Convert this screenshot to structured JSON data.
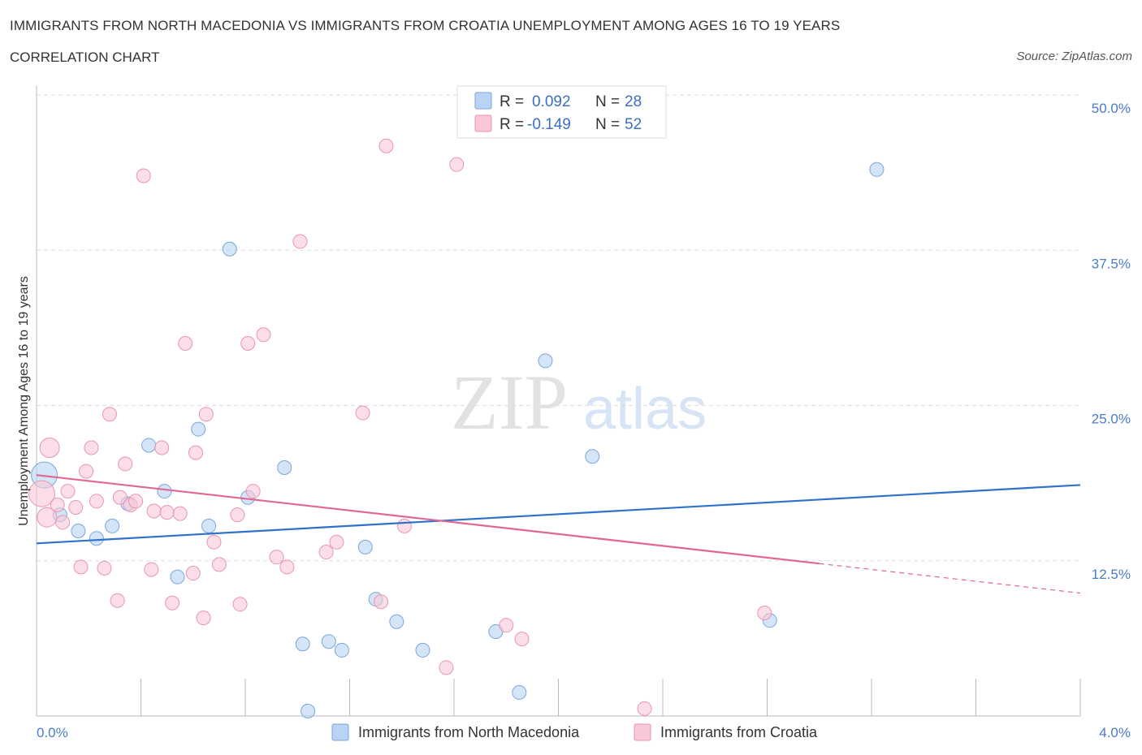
{
  "title": "IMMIGRANTS FROM NORTH MACEDONIA VS IMMIGRANTS FROM CROATIA UNEMPLOYMENT AMONG AGES 16 TO 19 YEARS",
  "subtitle": "CORRELATION CHART",
  "source": "Source: ZipAtlas.com",
  "watermark": {
    "zip": "ZIP",
    "atlas": "atlas"
  },
  "colors": {
    "blue_fill": "#b8d3f3",
    "blue_stroke": "#7aa6dd",
    "blue_line": "#2f72cc",
    "pink_fill": "#f8c8d7",
    "pink_stroke": "#e995b1",
    "pink_line": "#e06693",
    "tick_text": "#4a7cc7",
    "grid": "#dddddd"
  },
  "legend": {
    "rows": [
      {
        "r_label": "R = ",
        "r_value": "0.092",
        "n_label": "N = ",
        "n_value": "28",
        "series": "blue"
      },
      {
        "r_label": "R = ",
        "r_value": "-0.149",
        "n_label": "N = ",
        "n_value": "52",
        "series": "pink"
      }
    ]
  },
  "bottom_legend": [
    {
      "label": "Immigrants from North Macedonia",
      "series": "blue"
    },
    {
      "label": "Immigrants from Croatia",
      "series": "pink"
    }
  ],
  "chart_data": {
    "type": "scatter",
    "ylabel": "Unemployment Among Ages 16 to 19 years",
    "xlim": [
      0,
      4.0
    ],
    "ylim": [
      0,
      50
    ],
    "x_ticks_labels": [
      "0.0%",
      "4.0%"
    ],
    "y_ticks": [
      {
        "value": 12.5,
        "label": "12.5%"
      },
      {
        "value": 25.0,
        "label": "25.0%"
      },
      {
        "value": 37.5,
        "label": "37.5%"
      },
      {
        "value": 50.0,
        "label": "50.0%"
      }
    ],
    "grid": true,
    "series": [
      {
        "name": "Immigrants from North Macedonia",
        "color": "blue",
        "trend": {
          "x": [
            0.0,
            4.0
          ],
          "y": [
            13.9,
            18.6
          ],
          "dashed_from": null
        },
        "points": [
          {
            "x": 0.03,
            "y": 19.4,
            "s": 3
          },
          {
            "x": 0.09,
            "y": 16.2,
            "s": 1
          },
          {
            "x": 0.16,
            "y": 14.9,
            "s": 1
          },
          {
            "x": 0.23,
            "y": 14.3,
            "s": 1
          },
          {
            "x": 0.29,
            "y": 15.3,
            "s": 1
          },
          {
            "x": 0.35,
            "y": 17.1,
            "s": 1
          },
          {
            "x": 0.43,
            "y": 21.8,
            "s": 1
          },
          {
            "x": 0.49,
            "y": 18.1,
            "s": 1
          },
          {
            "x": 0.54,
            "y": 11.2,
            "s": 1
          },
          {
            "x": 0.62,
            "y": 23.1,
            "s": 1
          },
          {
            "x": 0.66,
            "y": 15.3,
            "s": 1
          },
          {
            "x": 0.74,
            "y": 37.6,
            "s": 1
          },
          {
            "x": 0.81,
            "y": 17.6,
            "s": 1
          },
          {
            "x": 0.95,
            "y": 20.0,
            "s": 1
          },
          {
            "x": 1.02,
            "y": 5.8,
            "s": 1
          },
          {
            "x": 1.04,
            "y": 0.4,
            "s": 1
          },
          {
            "x": 1.12,
            "y": 6.0,
            "s": 1
          },
          {
            "x": 1.17,
            "y": 5.3,
            "s": 1
          },
          {
            "x": 1.26,
            "y": 13.6,
            "s": 1
          },
          {
            "x": 1.3,
            "y": 9.4,
            "s": 1
          },
          {
            "x": 1.38,
            "y": 7.6,
            "s": 1
          },
          {
            "x": 1.48,
            "y": 5.3,
            "s": 1
          },
          {
            "x": 1.76,
            "y": 6.8,
            "s": 1
          },
          {
            "x": 1.85,
            "y": 1.9,
            "s": 1
          },
          {
            "x": 1.95,
            "y": 28.6,
            "s": 1
          },
          {
            "x": 2.13,
            "y": 20.9,
            "s": 1
          },
          {
            "x": 2.81,
            "y": 7.7,
            "s": 1
          },
          {
            "x": 3.22,
            "y": 44.0,
            "s": 1
          }
        ]
      },
      {
        "name": "Immigrants from Croatia",
        "color": "pink",
        "trend": {
          "x": [
            0.0,
            4.0
          ],
          "y": [
            19.4,
            9.9
          ],
          "dashed_from": 3.0
        },
        "points": [
          {
            "x": 0.02,
            "y": 17.9,
            "s": 3
          },
          {
            "x": 0.04,
            "y": 16.0,
            "s": 2
          },
          {
            "x": 0.05,
            "y": 21.6,
            "s": 2
          },
          {
            "x": 0.08,
            "y": 17.0,
            "s": 1
          },
          {
            "x": 0.1,
            "y": 15.6,
            "s": 1
          },
          {
            "x": 0.12,
            "y": 18.1,
            "s": 1
          },
          {
            "x": 0.15,
            "y": 16.8,
            "s": 1
          },
          {
            "x": 0.17,
            "y": 12.0,
            "s": 1
          },
          {
            "x": 0.19,
            "y": 19.7,
            "s": 1
          },
          {
            "x": 0.21,
            "y": 21.6,
            "s": 1
          },
          {
            "x": 0.23,
            "y": 17.3,
            "s": 1
          },
          {
            "x": 0.26,
            "y": 11.9,
            "s": 1
          },
          {
            "x": 0.28,
            "y": 24.3,
            "s": 1
          },
          {
            "x": 0.31,
            "y": 9.3,
            "s": 1
          },
          {
            "x": 0.32,
            "y": 17.6,
            "s": 1
          },
          {
            "x": 0.34,
            "y": 20.3,
            "s": 1
          },
          {
            "x": 0.36,
            "y": 17.0,
            "s": 1
          },
          {
            "x": 0.38,
            "y": 17.3,
            "s": 1
          },
          {
            "x": 0.41,
            "y": 43.5,
            "s": 1
          },
          {
            "x": 0.44,
            "y": 11.8,
            "s": 1
          },
          {
            "x": 0.45,
            "y": 16.5,
            "s": 1
          },
          {
            "x": 0.48,
            "y": 21.6,
            "s": 1
          },
          {
            "x": 0.5,
            "y": 16.4,
            "s": 1
          },
          {
            "x": 0.52,
            "y": 9.1,
            "s": 1
          },
          {
            "x": 0.55,
            "y": 16.3,
            "s": 1
          },
          {
            "x": 0.57,
            "y": 30.0,
            "s": 1
          },
          {
            "x": 0.6,
            "y": 11.5,
            "s": 1
          },
          {
            "x": 0.61,
            "y": 21.2,
            "s": 1
          },
          {
            "x": 0.64,
            "y": 7.9,
            "s": 1
          },
          {
            "x": 0.65,
            "y": 24.3,
            "s": 1
          },
          {
            "x": 0.68,
            "y": 14.0,
            "s": 1
          },
          {
            "x": 0.7,
            "y": 12.2,
            "s": 1
          },
          {
            "x": 0.77,
            "y": 16.2,
            "s": 1
          },
          {
            "x": 0.78,
            "y": 9.0,
            "s": 1
          },
          {
            "x": 0.81,
            "y": 30.0,
            "s": 1
          },
          {
            "x": 0.83,
            "y": 18.1,
            "s": 1
          },
          {
            "x": 0.87,
            "y": 30.7,
            "s": 1
          },
          {
            "x": 0.92,
            "y": 12.8,
            "s": 1
          },
          {
            "x": 0.96,
            "y": 12.0,
            "s": 1
          },
          {
            "x": 1.01,
            "y": 38.2,
            "s": 1
          },
          {
            "x": 1.11,
            "y": 13.2,
            "s": 1
          },
          {
            "x": 1.15,
            "y": 14.0,
            "s": 1
          },
          {
            "x": 1.25,
            "y": 24.4,
            "s": 1
          },
          {
            "x": 1.34,
            "y": 45.9,
            "s": 1
          },
          {
            "x": 1.32,
            "y": 9.2,
            "s": 1
          },
          {
            "x": 1.41,
            "y": 15.3,
            "s": 1
          },
          {
            "x": 1.57,
            "y": 3.9,
            "s": 1
          },
          {
            "x": 1.61,
            "y": 44.4,
            "s": 1
          },
          {
            "x": 1.8,
            "y": 7.3,
            "s": 1
          },
          {
            "x": 1.86,
            "y": 6.2,
            "s": 1
          },
          {
            "x": 2.33,
            "y": 0.6,
            "s": 1
          },
          {
            "x": 2.79,
            "y": 8.3,
            "s": 1
          }
        ]
      }
    ]
  }
}
